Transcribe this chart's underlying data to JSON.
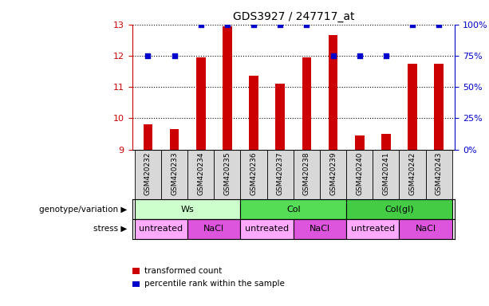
{
  "title": "GDS3927 / 247717_at",
  "samples": [
    "GSM420232",
    "GSM420233",
    "GSM420234",
    "GSM420235",
    "GSM420236",
    "GSM420237",
    "GSM420238",
    "GSM420239",
    "GSM420240",
    "GSM420241",
    "GSM420242",
    "GSM420243"
  ],
  "bar_values": [
    9.8,
    9.65,
    11.95,
    12.95,
    11.35,
    11.1,
    11.95,
    12.65,
    9.45,
    9.5,
    11.75,
    11.75
  ],
  "dot_values": [
    75,
    75,
    100,
    100,
    100,
    100,
    100,
    75,
    75,
    75,
    100,
    100
  ],
  "ylim": [
    9,
    13
  ],
  "yticks": [
    9,
    10,
    11,
    12,
    13
  ],
  "y2lim": [
    0,
    100
  ],
  "y2ticks": [
    0,
    25,
    50,
    75,
    100
  ],
  "y2ticklabels": [
    "0%",
    "25%",
    "50%",
    "75%",
    "100%"
  ],
  "bar_color": "#cc0000",
  "dot_color": "#0000cc",
  "bar_bottom": 9,
  "bar_width": 0.35,
  "genotype_groups": [
    {
      "label": "Ws",
      "start": 0,
      "end": 4,
      "color": "#ccffcc"
    },
    {
      "label": "Col",
      "start": 4,
      "end": 8,
      "color": "#55dd55"
    },
    {
      "label": "Col(gl)",
      "start": 8,
      "end": 12,
      "color": "#44cc44"
    }
  ],
  "stress_groups": [
    {
      "label": "untreated",
      "start": 0,
      "end": 2,
      "color": "#ffaaff"
    },
    {
      "label": "NaCl",
      "start": 2,
      "end": 4,
      "color": "#dd55dd"
    },
    {
      "label": "untreated",
      "start": 4,
      "end": 6,
      "color": "#ffaaff"
    },
    {
      "label": "NaCl",
      "start": 6,
      "end": 8,
      "color": "#dd55dd"
    },
    {
      "label": "untreated",
      "start": 8,
      "end": 10,
      "color": "#ffaaff"
    },
    {
      "label": "NaCl",
      "start": 10,
      "end": 12,
      "color": "#dd55dd"
    }
  ],
  "legend_red": "transformed count",
  "legend_blue": "percentile rank within the sample",
  "tick_color_left": "#cc0000",
  "tick_color_right": "#0000cc",
  "genotype_label": "genotype/variation",
  "stress_label": "stress",
  "sample_bg_color": "#d8d8d8",
  "fig_width": 6.13,
  "fig_height": 3.84,
  "dpi": 100
}
